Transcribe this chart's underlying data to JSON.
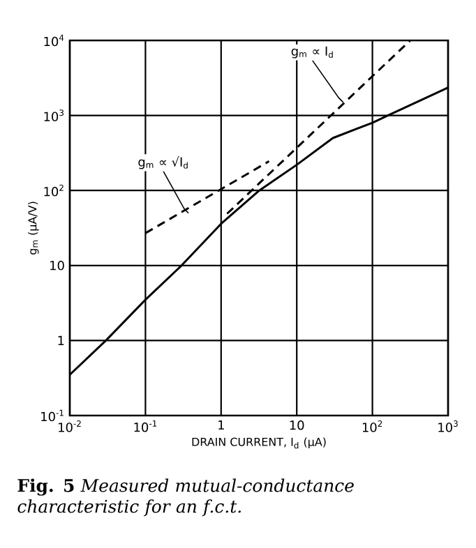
{
  "chart_data": {
    "type": "line",
    "xlabel": "DRAIN CURRENT, I$_{d}$ (μA)",
    "ylabel": "g$_{m}$ (μA/V)",
    "log": "xy",
    "grid": true,
    "marker": "none",
    "xlim": [
      0.01,
      1000
    ],
    "ylim": [
      0.1,
      10000
    ],
    "xticks": [
      {
        "value": 0.01,
        "label": "10$^{-2}$"
      },
      {
        "value": 0.1,
        "label": "10$^{-1}$"
      },
      1,
      10,
      {
        "value": 100,
        "label": "10$^{2}$"
      },
      {
        "value": 1000,
        "label": "10$^{3}$"
      }
    ],
    "yticks": [
      {
        "value": 0.1,
        "label": "10$^{-1}$"
      },
      1,
      10,
      {
        "value": 100,
        "label": "10$^{2}$"
      },
      {
        "value": 1000,
        "label": "10$^{3}$"
      },
      {
        "value": 10000,
        "label": "10$^{4}$"
      }
    ],
    "series": [
      {
        "color": "#000000",
        "line_style": "solid",
        "x": [
          0.01,
          0.03,
          0.1,
          0.3,
          1,
          3.2,
          10,
          30,
          100,
          160,
          1000
        ],
        "values": [
          0.35,
          1,
          3.5,
          10,
          36,
          100,
          220,
          500,
          800,
          1000,
          2350
        ]
      },
      {
        "color": "#000000",
        "line_style": "dashed",
        "x": [
          0.1,
          4.3
        ],
        "values": [
          27,
          245
        ]
      },
      {
        "color": "#000000",
        "line_style": "dashed",
        "x": [
          1.2,
          316
        ],
        "values": [
          49,
          10000
        ]
      }
    ],
    "annotations": [
      {
        "text": "g$_{m}$ ∝ I$_{d}$",
        "x": 41,
        "y": 1500
      },
      {
        "text": "g$_{m}$ ∝ √I$_{d}$",
        "x": 0.37,
        "y": 50
      },
      "**Fig. 5** *Measured mutual-conductance characteristic for an f.c.t.*"
    ]
  }
}
